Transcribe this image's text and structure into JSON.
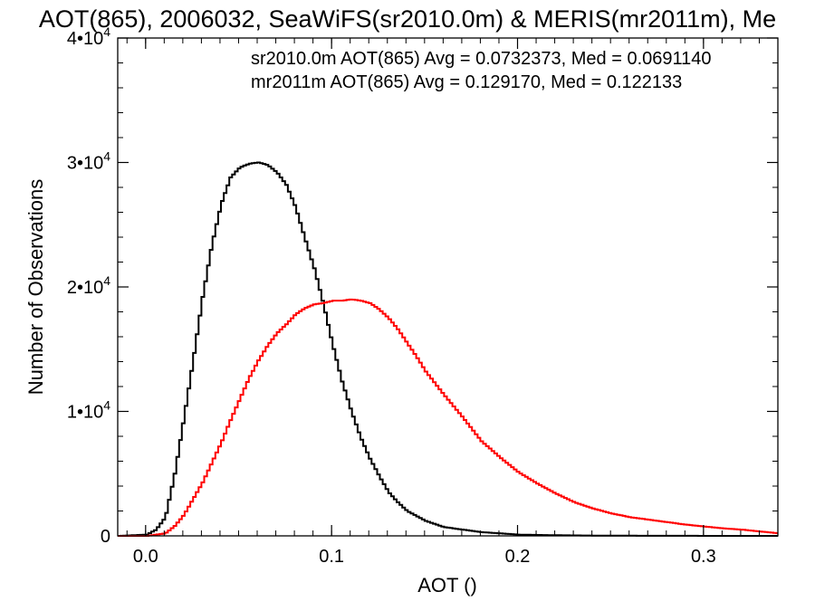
{
  "chart_data": {
    "type": "line",
    "title": "AOT(865), 2006032, SeaWiFS(sr2010.0m) & MERIS(mr2011m), Me",
    "xlabel": "AOT ()",
    "ylabel": "Number of Observations",
    "xlim": [
      -0.015,
      0.34
    ],
    "ylim": [
      0,
      40000
    ],
    "x_ticks": [
      {
        "value": 0.0,
        "label": "0.0"
      },
      {
        "value": 0.1,
        "label": "0.1"
      },
      {
        "value": 0.2,
        "label": "0.2"
      },
      {
        "value": 0.3,
        "label": "0.3"
      }
    ],
    "y_ticks": [
      {
        "value": 0,
        "mant": "0",
        "exp": ""
      },
      {
        "value": 10000,
        "mant": "1•10",
        "exp": "4"
      },
      {
        "value": 20000,
        "mant": "2•10",
        "exp": "4"
      },
      {
        "value": 30000,
        "mant": "3•10",
        "exp": "4"
      },
      {
        "value": 40000,
        "mant": "4•10",
        "exp": "4"
      }
    ],
    "legend_position": "top-right",
    "series": [
      {
        "name": "sr2010.0m",
        "label": "sr2010.0m AOT(865) Avg = 0.0732373, Med = 0.0691140",
        "color": "#000000",
        "x": [
          -0.015,
          0.0,
          0.005,
          0.01,
          0.015,
          0.02,
          0.025,
          0.03,
          0.035,
          0.04,
          0.045,
          0.05,
          0.055,
          0.06,
          0.065,
          0.07,
          0.075,
          0.08,
          0.085,
          0.09,
          0.095,
          0.1,
          0.105,
          0.11,
          0.115,
          0.12,
          0.125,
          0.13,
          0.135,
          0.14,
          0.15,
          0.16,
          0.17,
          0.18,
          0.19,
          0.2,
          0.22,
          0.24,
          0.26,
          0.28,
          0.3,
          0.34
        ],
        "y": [
          0,
          100,
          500,
          1500,
          5000,
          9500,
          14200,
          19200,
          23400,
          26700,
          28800,
          29600,
          29900,
          30000,
          29800,
          29200,
          28200,
          26400,
          23900,
          21500,
          18600,
          15300,
          12400,
          10000,
          7900,
          6200,
          4800,
          3500,
          2700,
          2000,
          1200,
          700,
          500,
          300,
          200,
          100,
          50,
          25,
          12,
          6,
          3,
          0
        ]
      },
      {
        "name": "mr2011m",
        "label": "mr2011m AOT(865) Avg = 0.129170, Med = 0.122133",
        "color": "#ff0000",
        "x": [
          -0.015,
          0.0,
          0.01,
          0.015,
          0.02,
          0.025,
          0.03,
          0.035,
          0.04,
          0.045,
          0.05,
          0.055,
          0.06,
          0.065,
          0.07,
          0.075,
          0.08,
          0.085,
          0.09,
          0.095,
          0.1,
          0.105,
          0.11,
          0.115,
          0.12,
          0.125,
          0.13,
          0.135,
          0.14,
          0.145,
          0.15,
          0.16,
          0.17,
          0.18,
          0.19,
          0.2,
          0.21,
          0.22,
          0.23,
          0.24,
          0.25,
          0.26,
          0.27,
          0.28,
          0.29,
          0.3,
          0.31,
          0.32,
          0.33,
          0.34
        ],
        "y": [
          0,
          0,
          200,
          800,
          1700,
          3000,
          4300,
          5900,
          7500,
          9300,
          11000,
          12700,
          14100,
          15300,
          16300,
          17000,
          17800,
          18300,
          18600,
          18700,
          18900,
          18900,
          19000,
          18900,
          18700,
          18200,
          17500,
          16600,
          15500,
          14400,
          13200,
          11300,
          9500,
          7600,
          6300,
          5100,
          4200,
          3400,
          2700,
          2200,
          1800,
          1500,
          1300,
          1100,
          900,
          750,
          600,
          500,
          350,
          200
        ]
      }
    ]
  }
}
